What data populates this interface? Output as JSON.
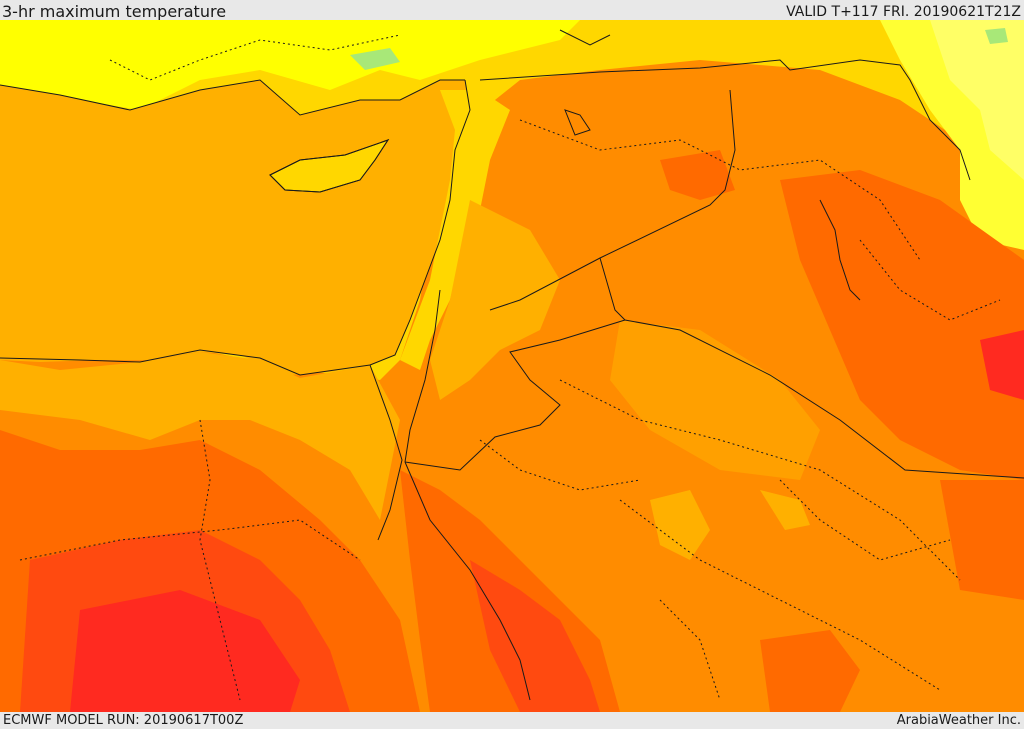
{
  "header": {
    "title": "3-hr maximum temperature",
    "valid_time": "VALID T+117 FRI. 20190621T21Z"
  },
  "footer": {
    "model_run": "ECMWF MODEL RUN: 20190617T00Z",
    "credit": "ArabiaWeather Inc."
  },
  "map": {
    "region": "Eastern Mediterranean / Levant / Northern Arabia",
    "palette": {
      "light_yellow": "#ffff66",
      "yellow": "#ffff00",
      "gold": "#ffd700",
      "amber": "#ffb000",
      "orange": "#ff8c00",
      "dark_orange": "#ff6a00",
      "red_orange": "#ff4a10",
      "red": "#ff2a20",
      "green_speck": "#a8e878",
      "lines": "#1a1a1a"
    }
  }
}
